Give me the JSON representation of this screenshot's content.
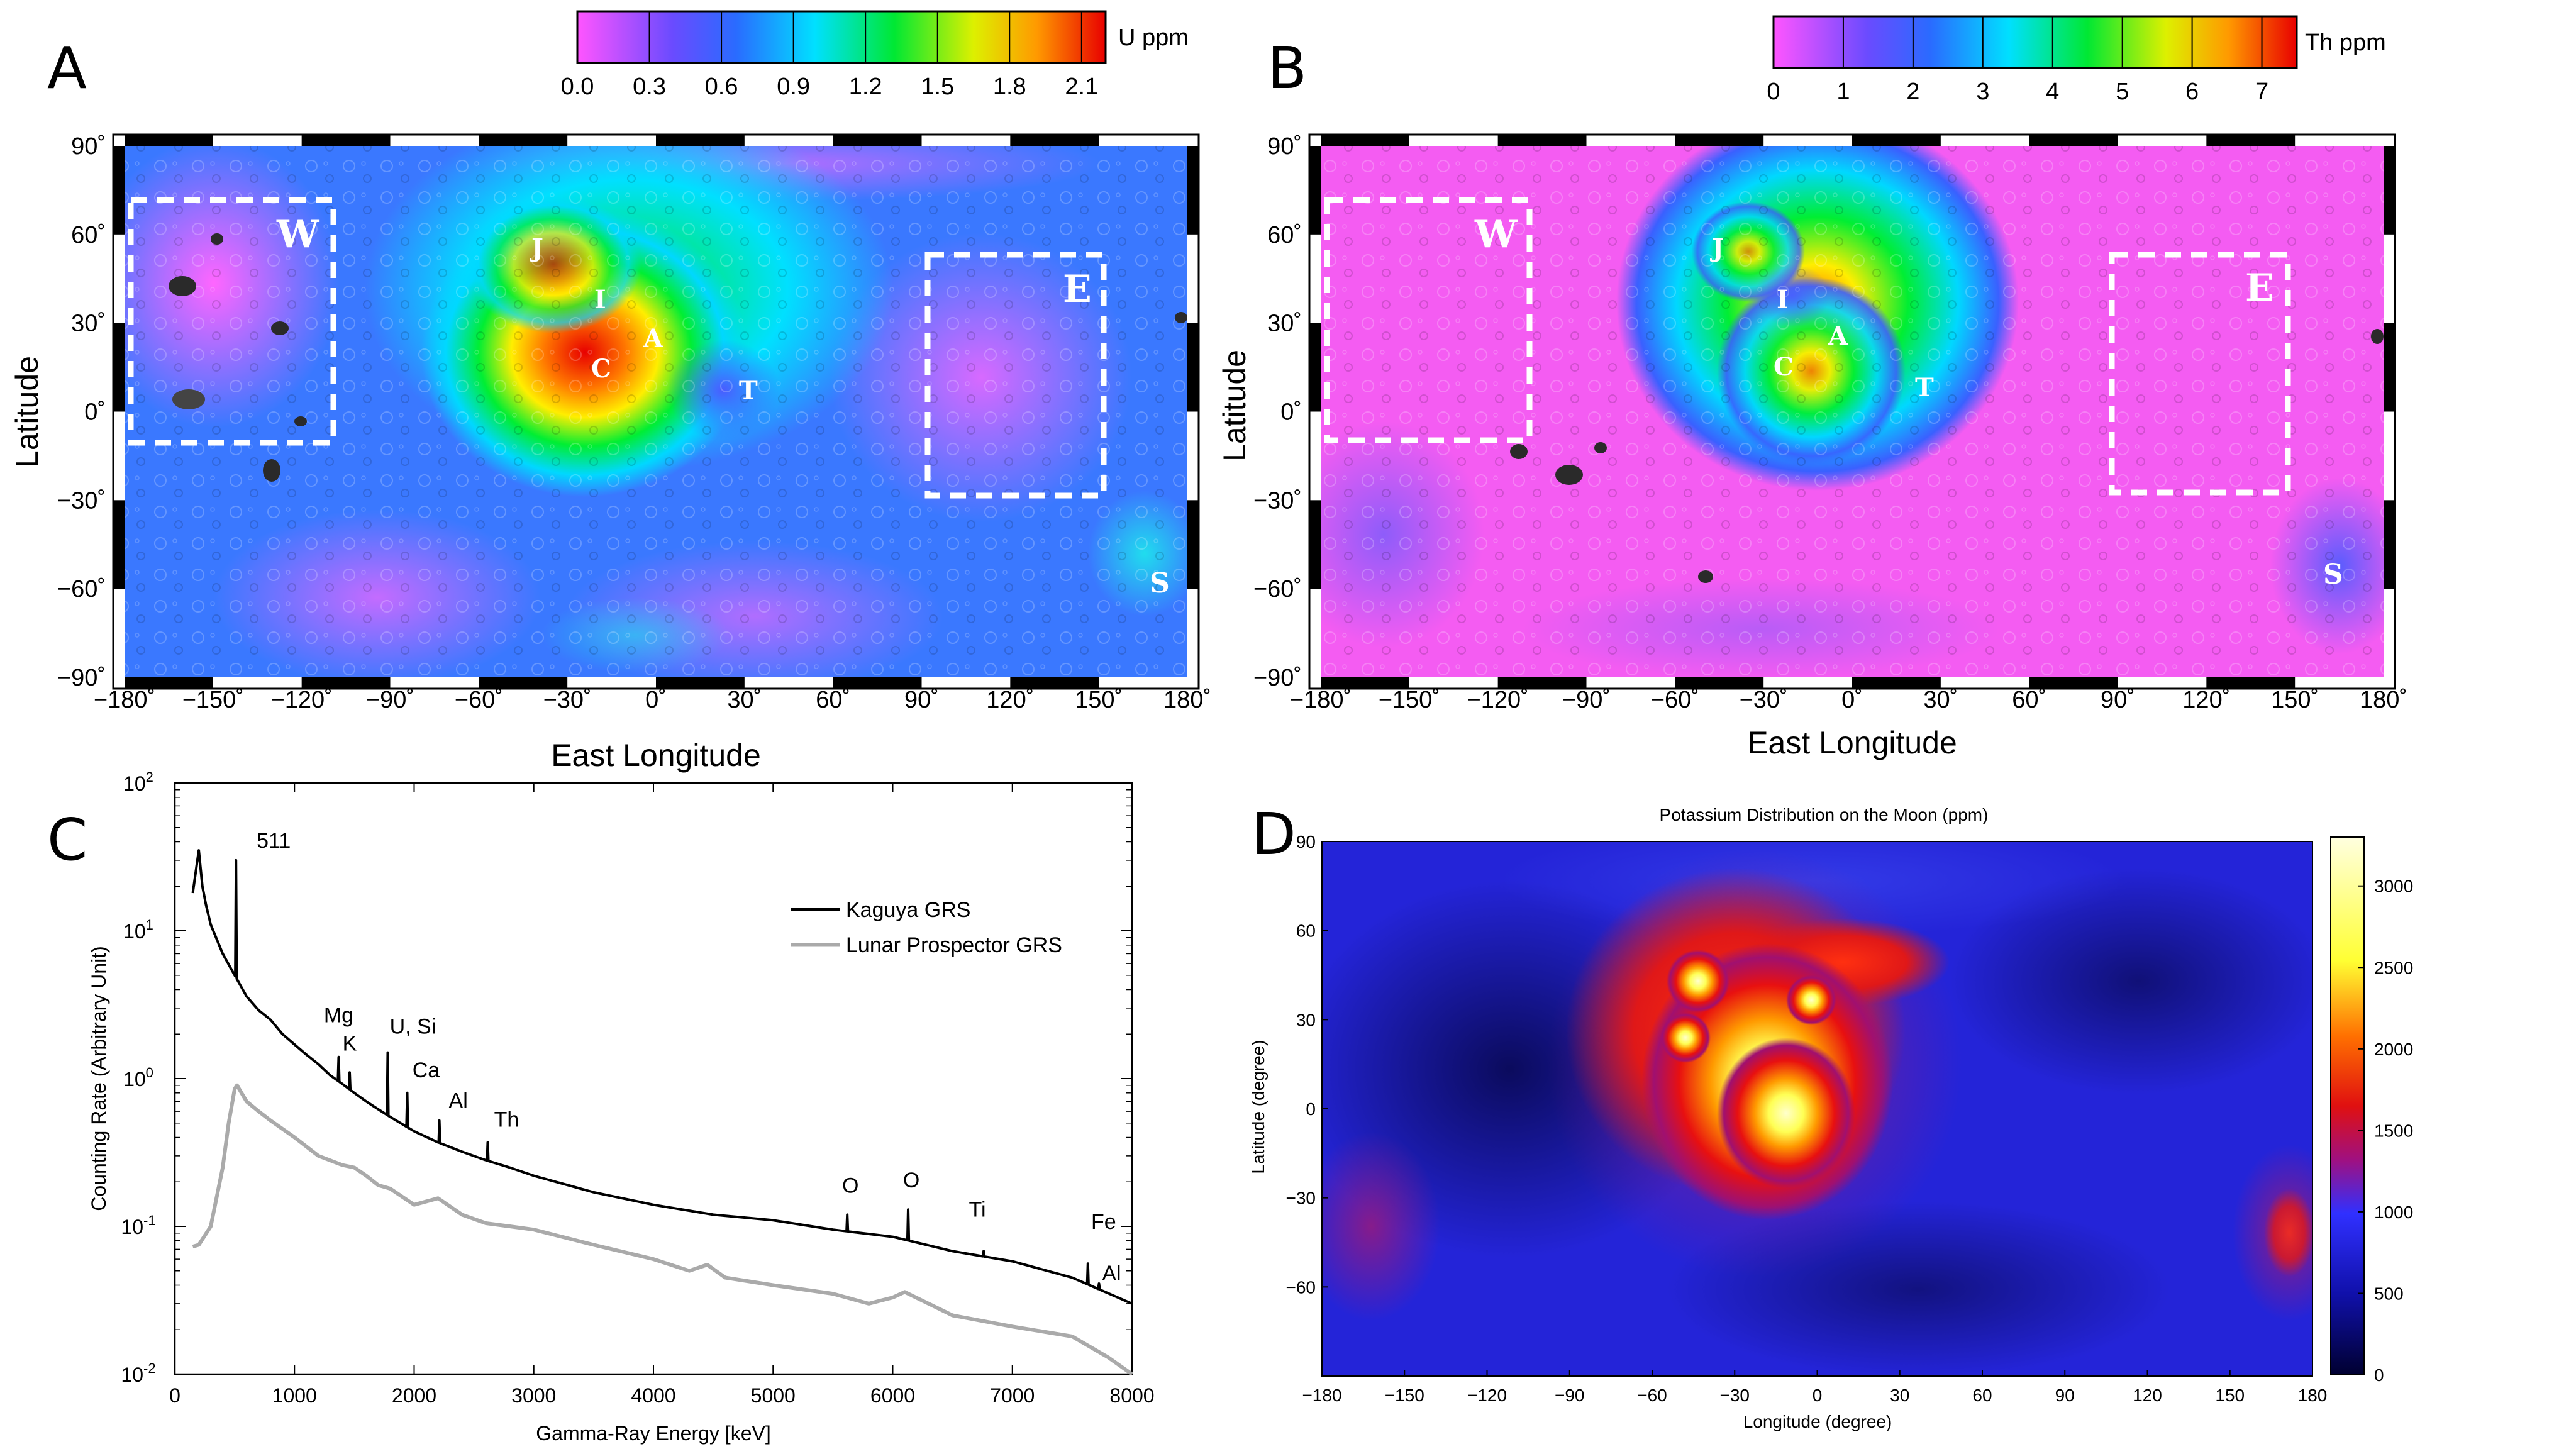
{
  "panels": {
    "A": {
      "label": "A",
      "colorbar": {
        "unit": "U ppm",
        "ticks": [
          "0.0",
          "0.3",
          "0.6",
          "0.9",
          "1.2",
          "1.5",
          "1.8",
          "2.1"
        ]
      },
      "xticks": [
        "−180˚",
        "−150˚",
        "−120˚",
        "−90˚",
        "−60˚",
        "−30˚",
        "0˚",
        "30˚",
        "60˚",
        "90˚",
        "120˚",
        "150˚",
        "180˚"
      ],
      "yticks": [
        "90˚",
        "60˚",
        "30˚",
        "0˚",
        "−30˚",
        "−60˚",
        "−90˚"
      ],
      "xlabel": "East Longitude",
      "ylabel": "Latitude",
      "regions": [
        "W",
        "E",
        "S",
        "J",
        "I",
        "A",
        "C",
        "T"
      ]
    },
    "B": {
      "label": "B",
      "colorbar": {
        "unit": "Th ppm",
        "ticks": [
          "0",
          "1",
          "2",
          "3",
          "4",
          "5",
          "6",
          "7"
        ]
      },
      "xticks": [
        "−180˚",
        "−150˚",
        "−120˚",
        "−90˚",
        "−60˚",
        "−30˚",
        "0˚",
        "30˚",
        "60˚",
        "90˚",
        "120˚",
        "150˚",
        "180˚"
      ],
      "yticks": [
        "90˚",
        "60˚",
        "30˚",
        "0˚",
        "−30˚",
        "−60˚",
        "−90˚"
      ],
      "xlabel": "East Longitude",
      "ylabel": "Latitude",
      "regions": [
        "W",
        "E",
        "S",
        "J",
        "I",
        "A",
        "C",
        "T"
      ]
    },
    "C": {
      "label": "C",
      "xlabel": "Gamma-Ray Energy [keV]",
      "ylabel": "Counting Rate (Arbitrary Unit)",
      "legend": [
        "Kaguya GRS",
        "Lunar Prospector GRS"
      ],
      "peaks": [
        "511",
        "Mg",
        "K",
        "U, Si",
        "Ca",
        "Al",
        "Th",
        "O",
        "O",
        "Ti",
        "Fe",
        "Al"
      ]
    },
    "D": {
      "label": "D",
      "title": "Potassium Distribution on the Moon (ppm)",
      "xlabel": "Longitude (degree)",
      "ylabel": "Latitude (degree)",
      "colorbar_ticks": [
        "3000",
        "2500",
        "2000",
        "1500",
        "1000",
        "500",
        "0"
      ]
    }
  },
  "chart_data": [
    {
      "type": "heatmap",
      "title": "",
      "xlabel": "East Longitude",
      "ylabel": "Latitude",
      "xlim": [
        -180,
        180
      ],
      "ylim": [
        -90,
        90
      ],
      "colorbar_label": "U ppm",
      "colorbar_range": [
        0.0,
        2.2
      ],
      "colors": [
        "#ff55ff",
        "#4040ff",
        "#00e0ff",
        "#00ee33",
        "#ffee00",
        "#ff7700",
        "#e80000"
      ],
      "regions": [
        {
          "name": "W",
          "lon": [
            -180,
            -110
          ],
          "lat": [
            -10,
            72
          ]
        },
        {
          "name": "E",
          "lon": [
            90,
            150
          ],
          "lat": [
            -30,
            53
          ]
        },
        {
          "name": "S",
          "lon": 170,
          "lat": -58
        },
        {
          "name": "J",
          "lon": -41,
          "lat": 53
        },
        {
          "name": "I",
          "lon": -18,
          "lat": 35
        },
        {
          "name": "A",
          "lon": 0,
          "lat": 25
        },
        {
          "name": "C",
          "lon": -18,
          "lat": 14
        },
        {
          "name": "T",
          "lon": 30,
          "lat": 6
        }
      ]
    },
    {
      "type": "heatmap",
      "title": "",
      "xlabel": "East Longitude",
      "ylabel": "Latitude",
      "xlim": [
        -180,
        180
      ],
      "ylim": [
        -90,
        90
      ],
      "colorbar_label": "Th ppm",
      "colorbar_range": [
        0,
        7.5
      ],
      "colors": [
        "#ff55ff",
        "#4040ff",
        "#00e0ff",
        "#00ee33",
        "#ffee00",
        "#ff7700",
        "#e80000"
      ],
      "regions": [
        {
          "name": "W",
          "lon": [
            -180,
            -110
          ],
          "lat": [
            -10,
            72
          ]
        },
        {
          "name": "E",
          "lon": [
            90,
            150
          ],
          "lat": [
            -30,
            53
          ]
        },
        {
          "name": "S",
          "lon": 170,
          "lat": -58
        },
        {
          "name": "J",
          "lon": -41,
          "lat": 53
        },
        {
          "name": "I",
          "lon": -18,
          "lat": 35
        },
        {
          "name": "A",
          "lon": 0,
          "lat": 25
        },
        {
          "name": "C",
          "lon": -18,
          "lat": 14
        },
        {
          "name": "T",
          "lon": 30,
          "lat": 6
        }
      ]
    },
    {
      "type": "line",
      "title": "",
      "xlabel": "Gamma-Ray Energy [keV]",
      "ylabel": "Counting Rate (Arbitrary Unit)",
      "xlim": [
        0,
        8000
      ],
      "ylim": [
        0.01,
        100
      ],
      "yscale": "log",
      "xticks": [
        0,
        1000,
        2000,
        3000,
        4000,
        5000,
        6000,
        7000,
        8000
      ],
      "yticks": [
        "10^-2",
        "10^-1",
        "10^0",
        "10^1",
        "10^2"
      ],
      "legend_position": "top-right",
      "series": [
        {
          "name": "Kaguya GRS",
          "color": "#000000",
          "points": [
            [
              150,
              18
            ],
            [
              200,
              35
            ],
            [
              230,
              20
            ],
            [
              260,
              15
            ],
            [
              300,
              11
            ],
            [
              400,
              7
            ],
            [
              500,
              5
            ],
            [
              600,
              3.6
            ],
            [
              700,
              2.9
            ],
            [
              800,
              2.5
            ],
            [
              900,
              2.0
            ],
            [
              1000,
              1.7
            ],
            [
              1100,
              1.45
            ],
            [
              1200,
              1.25
            ],
            [
              1300,
              1.05
            ],
            [
              1400,
              0.92
            ],
            [
              1500,
              0.8
            ],
            [
              1600,
              0.7
            ],
            [
              1700,
              0.62
            ],
            [
              1800,
              0.55
            ],
            [
              2000,
              0.44
            ],
            [
              2200,
              0.37
            ],
            [
              2400,
              0.32
            ],
            [
              2600,
              0.28
            ],
            [
              2800,
              0.25
            ],
            [
              3000,
              0.22
            ],
            [
              3500,
              0.17
            ],
            [
              4000,
              0.14
            ],
            [
              4500,
              0.12
            ],
            [
              5000,
              0.11
            ],
            [
              5500,
              0.095
            ],
            [
              6000,
              0.085
            ],
            [
              6500,
              0.068
            ],
            [
              7000,
              0.058
            ],
            [
              7500,
              0.045
            ],
            [
              8000,
              0.03
            ]
          ],
          "peaks": [
            {
              "label": "511",
              "x": 511,
              "y": 30
            },
            {
              "label": "Mg",
              "x": 1369,
              "y": 1.4
            },
            {
              "label": "K",
              "x": 1461,
              "y": 1.1
            },
            {
              "label": "U, Si",
              "x": 1779,
              "y": 1.5
            },
            {
              "label": "Ca",
              "x": 1942,
              "y": 0.8
            },
            {
              "label": "Al",
              "x": 2211,
              "y": 0.52
            },
            {
              "label": "Th",
              "x": 2615,
              "y": 0.37
            },
            {
              "label": "O",
              "x": 5620,
              "y": 0.12
            },
            {
              "label": "O",
              "x": 6129,
              "y": 0.13
            },
            {
              "label": "Ti",
              "x": 6760,
              "y": 0.068
            },
            {
              "label": "Fe",
              "x": 7631,
              "y": 0.056
            },
            {
              "label": "Al",
              "x": 7724,
              "y": 0.041
            }
          ]
        },
        {
          "name": "Lunar Prospector GRS",
          "color": "#aaaaaa",
          "points": [
            [
              150,
              0.073
            ],
            [
              200,
              0.075
            ],
            [
              300,
              0.1
            ],
            [
              400,
              0.25
            ],
            [
              450,
              0.5
            ],
            [
              500,
              0.85
            ],
            [
              520,
              0.9
            ],
            [
              600,
              0.7
            ],
            [
              700,
              0.6
            ],
            [
              800,
              0.52
            ],
            [
              1000,
              0.4
            ],
            [
              1200,
              0.3
            ],
            [
              1400,
              0.26
            ],
            [
              1500,
              0.25
            ],
            [
              1600,
              0.22
            ],
            [
              1700,
              0.19
            ],
            [
              1800,
              0.18
            ],
            [
              2000,
              0.14
            ],
            [
              2200,
              0.155
            ],
            [
              2400,
              0.12
            ],
            [
              2600,
              0.105
            ],
            [
              2800,
              0.1
            ],
            [
              3000,
              0.095
            ],
            [
              3500,
              0.075
            ],
            [
              4000,
              0.06
            ],
            [
              4300,
              0.05
            ],
            [
              4450,
              0.055
            ],
            [
              4600,
              0.045
            ],
            [
              5000,
              0.04
            ],
            [
              5500,
              0.035
            ],
            [
              5800,
              0.03
            ],
            [
              6000,
              0.033
            ],
            [
              6100,
              0.036
            ],
            [
              6300,
              0.03
            ],
            [
              6500,
              0.025
            ],
            [
              7000,
              0.021
            ],
            [
              7500,
              0.018
            ],
            [
              7800,
              0.013
            ],
            [
              8000,
              0.01
            ]
          ]
        }
      ]
    },
    {
      "type": "heatmap",
      "title": "Potassium Distribution on the Moon (ppm)",
      "xlabel": "Longitude (degree)",
      "ylabel": "Latitude (degree)",
      "xlim": [
        -180,
        180
      ],
      "ylim": [
        -90,
        90
      ],
      "xticks": [
        -180,
        -150,
        -120,
        -90,
        -60,
        -30,
        0,
        30,
        60,
        90,
        120,
        150,
        180
      ],
      "yticks": [
        90,
        60,
        30,
        0,
        -30,
        -60
      ],
      "colorbar_range": [
        0,
        3300
      ],
      "colorbar_ticks": [
        0,
        500,
        1000,
        1500,
        2000,
        2500,
        3000
      ],
      "colors": [
        "#000030",
        "#1010aa",
        "#2a2ae8",
        "#a01080",
        "#e01010",
        "#ff6a00",
        "#ffff33",
        "#ffffdd"
      ]
    }
  ]
}
